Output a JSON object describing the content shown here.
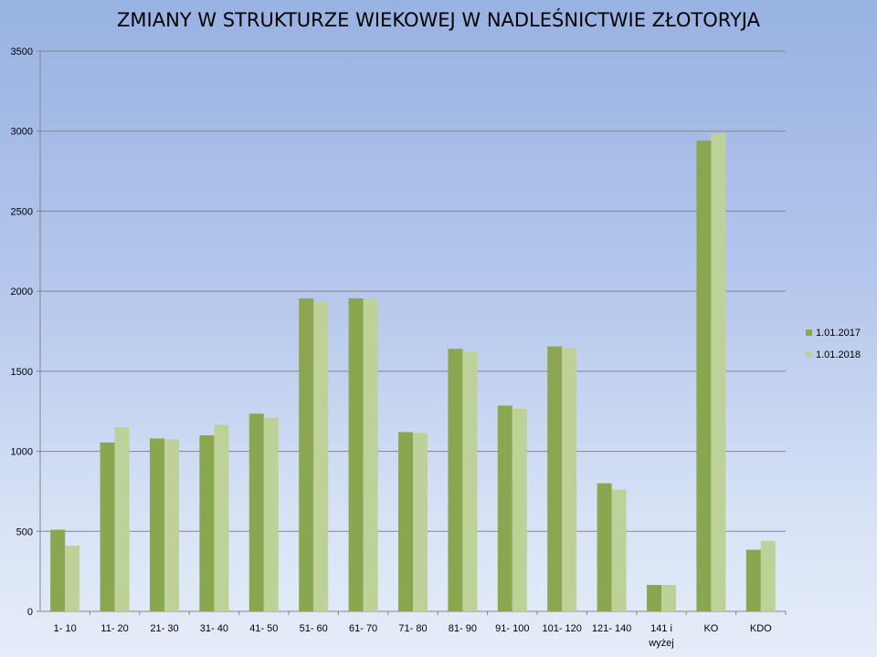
{
  "chart_data": {
    "type": "bar",
    "title": "ZMIANY W STRUKTURZE WIEKOWEJ W NADLEŚNICTWIE ZŁOTORYJA",
    "xlabel": "",
    "ylabel": "",
    "categories": [
      "1- 10",
      "11- 20",
      "21- 30",
      "31- 40",
      "41- 50",
      "51- 60",
      "61- 70",
      "71- 80",
      "81- 90",
      "91- 100",
      "101- 120",
      "121- 140",
      "141 i\nwyżej",
      "KO",
      "KDO"
    ],
    "series": [
      {
        "name": "1.01.2017",
        "color": "#8aa64e",
        "values": [
          510,
          1055,
          1080,
          1100,
          1235,
          1955,
          1955,
          1120,
          1640,
          1285,
          1655,
          800,
          165,
          2940,
          385
        ]
      },
      {
        "name": "1.01.2018",
        "color": "#bdd198",
        "values": [
          410,
          1150,
          1075,
          1165,
          1210,
          1935,
          1950,
          1115,
          1625,
          1265,
          1645,
          760,
          165,
          2985,
          440
        ]
      }
    ],
    "ylim": [
      0,
      3500
    ],
    "yticks": [
      0,
      500,
      1000,
      1500,
      2000,
      2500,
      3000,
      3500
    ],
    "grid": true,
    "legend_position": "right"
  }
}
